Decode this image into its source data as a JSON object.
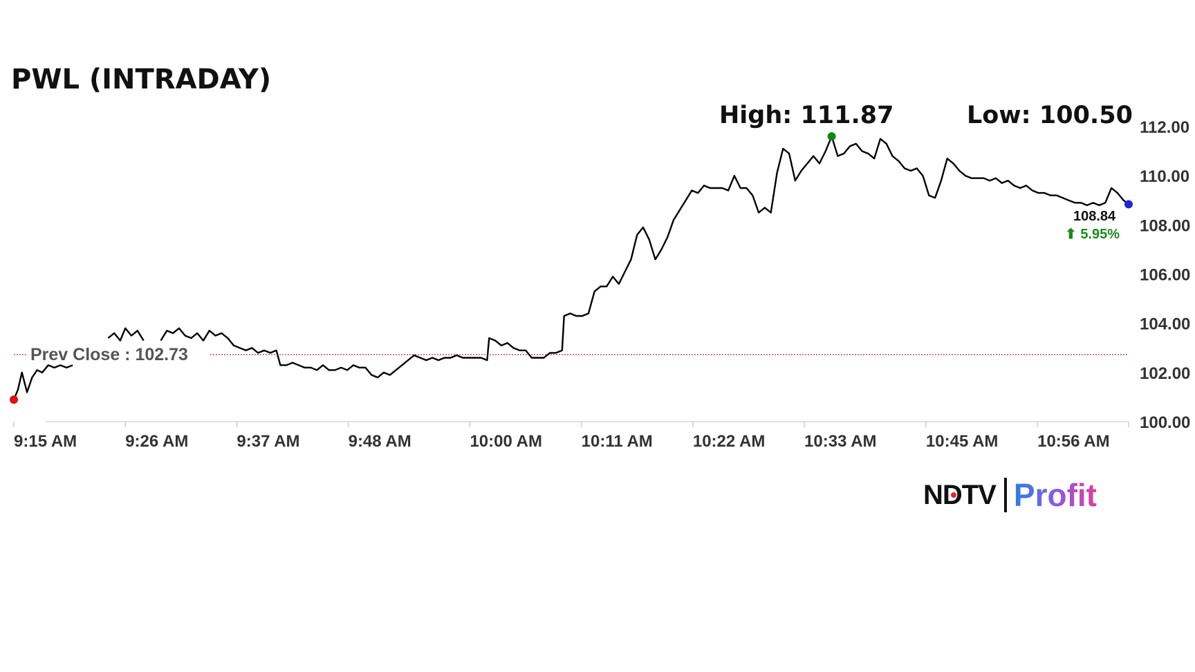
{
  "header": {
    "title": "PWL (INTRADAY)",
    "high_label": "High: 111.87",
    "low_label": "Low: 100.50"
  },
  "last": {
    "price": "108.84",
    "change": "⬆ 5.95%",
    "change_color": "#1a8a1a"
  },
  "brand": {
    "left": "NDTV",
    "right": "Profit"
  },
  "chart_data": {
    "type": "line",
    "title": "PWL (INTRADAY)",
    "xlabel": "",
    "ylabel": "",
    "ylim": [
      100,
      112
    ],
    "xlim_minutes": [
      0,
      110
    ],
    "y_ticks": [
      "112.00",
      "110.00",
      "108.00",
      "106.00",
      "104.00",
      "102.00",
      "100.00"
    ],
    "y_tick_values": [
      112,
      110,
      108,
      106,
      104,
      102,
      100
    ],
    "x_ticks": [
      "9:15 AM",
      "9:26 AM",
      "9:37 AM",
      "9:48 AM",
      "10:00 AM",
      "10:11 AM",
      "10:22 AM",
      "10:33 AM",
      "10:45 AM",
      "10:56 AM"
    ],
    "x_tick_minutes": [
      0,
      11,
      22,
      33,
      45,
      56,
      67,
      78,
      90,
      101
    ],
    "prev_close": 102.73,
    "prev_close_label": "Prev Close : 102.73",
    "high": 111.87,
    "low": 100.5,
    "last_price": 108.84,
    "line_color": "#000000",
    "prev_close_color": "#b03030",
    "start_marker_color": "#e01010",
    "high_marker_color": "#118811",
    "end_marker_color": "#1a2ad8",
    "series": [
      {
        "values": [
          [
            0.0,
            100.9
          ],
          [
            0.4,
            101.3
          ],
          [
            0.8,
            102.0
          ],
          [
            1.3,
            101.2
          ],
          [
            1.8,
            101.8
          ],
          [
            2.3,
            102.1
          ],
          [
            2.8,
            102.0
          ],
          [
            3.4,
            102.3
          ],
          [
            4.0,
            102.2
          ],
          [
            4.6,
            102.3
          ],
          [
            5.2,
            102.2
          ],
          [
            5.8,
            102.3
          ],
          [
            9.3,
            103.4
          ],
          [
            9.9,
            103.6
          ],
          [
            10.5,
            103.3
          ],
          [
            11.0,
            103.8
          ],
          [
            11.6,
            103.5
          ],
          [
            12.2,
            103.7
          ],
          [
            12.8,
            103.3
          ],
          [
            14.5,
            103.3
          ],
          [
            15.1,
            103.7
          ],
          [
            15.7,
            103.6
          ],
          [
            16.3,
            103.8
          ],
          [
            16.9,
            103.5
          ],
          [
            17.5,
            103.4
          ],
          [
            18.1,
            103.6
          ],
          [
            18.7,
            103.3
          ],
          [
            19.3,
            103.7
          ],
          [
            19.9,
            103.5
          ],
          [
            20.5,
            103.6
          ],
          [
            21.1,
            103.4
          ],
          [
            21.7,
            103.1
          ],
          [
            22.3,
            103.0
          ],
          [
            22.9,
            102.9
          ],
          [
            23.5,
            103.0
          ],
          [
            24.1,
            102.8
          ],
          [
            24.7,
            102.9
          ],
          [
            25.3,
            102.8
          ],
          [
            25.9,
            102.9
          ],
          [
            26.3,
            102.3
          ],
          [
            26.9,
            102.3
          ],
          [
            27.5,
            102.4
          ],
          [
            28.1,
            102.3
          ],
          [
            28.7,
            102.2
          ],
          [
            29.3,
            102.2
          ],
          [
            29.9,
            102.1
          ],
          [
            30.5,
            102.3
          ],
          [
            31.1,
            102.1
          ],
          [
            31.7,
            102.1
          ],
          [
            32.3,
            102.2
          ],
          [
            32.9,
            102.1
          ],
          [
            33.5,
            102.3
          ],
          [
            34.1,
            102.2
          ],
          [
            34.7,
            102.2
          ],
          [
            35.3,
            101.9
          ],
          [
            35.9,
            101.8
          ],
          [
            36.5,
            102.0
          ],
          [
            37.1,
            101.9
          ],
          [
            37.7,
            102.1
          ],
          [
            38.3,
            102.3
          ],
          [
            38.9,
            102.5
          ],
          [
            39.5,
            102.7
          ],
          [
            40.1,
            102.6
          ],
          [
            40.7,
            102.5
          ],
          [
            41.3,
            102.6
          ],
          [
            41.9,
            102.5
          ],
          [
            42.5,
            102.6
          ],
          [
            43.1,
            102.6
          ],
          [
            43.7,
            102.7
          ],
          [
            44.3,
            102.6
          ],
          [
            44.9,
            102.6
          ],
          [
            45.5,
            102.6
          ],
          [
            46.1,
            102.6
          ],
          [
            46.7,
            102.5
          ],
          [
            46.9,
            103.4
          ],
          [
            47.5,
            103.3
          ],
          [
            48.1,
            103.1
          ],
          [
            48.7,
            103.2
          ],
          [
            49.3,
            103.0
          ],
          [
            49.9,
            102.9
          ],
          [
            50.5,
            102.9
          ],
          [
            51.1,
            102.6
          ],
          [
            51.7,
            102.6
          ],
          [
            52.3,
            102.6
          ],
          [
            52.9,
            102.8
          ],
          [
            53.5,
            102.8
          ],
          [
            54.1,
            102.9
          ],
          [
            54.3,
            104.3
          ],
          [
            54.9,
            104.4
          ],
          [
            55.5,
            104.3
          ],
          [
            56.1,
            104.3
          ],
          [
            56.7,
            104.4
          ],
          [
            57.3,
            105.3
          ],
          [
            57.9,
            105.5
          ],
          [
            58.5,
            105.5
          ],
          [
            59.1,
            105.9
          ],
          [
            59.7,
            105.6
          ],
          [
            60.3,
            106.1
          ],
          [
            60.9,
            106.6
          ],
          [
            61.5,
            107.6
          ],
          [
            62.1,
            107.9
          ],
          [
            62.7,
            107.4
          ],
          [
            63.3,
            106.6
          ],
          [
            63.9,
            107.0
          ],
          [
            64.5,
            107.5
          ],
          [
            65.1,
            108.2
          ],
          [
            65.7,
            108.6
          ],
          [
            66.3,
            109.0
          ],
          [
            66.9,
            109.4
          ],
          [
            67.5,
            109.3
          ],
          [
            68.1,
            109.6
          ],
          [
            68.7,
            109.5
          ],
          [
            69.3,
            109.5
          ],
          [
            69.9,
            109.5
          ],
          [
            70.5,
            109.4
          ],
          [
            71.1,
            110.0
          ],
          [
            71.7,
            109.5
          ],
          [
            72.3,
            109.5
          ],
          [
            72.9,
            109.2
          ],
          [
            73.5,
            108.5
          ],
          [
            74.1,
            108.7
          ],
          [
            74.7,
            108.5
          ],
          [
            75.3,
            110.1
          ],
          [
            75.9,
            111.1
          ],
          [
            76.5,
            110.9
          ],
          [
            77.1,
            109.8
          ],
          [
            77.7,
            110.2
          ],
          [
            78.3,
            110.5
          ],
          [
            78.9,
            110.8
          ],
          [
            79.5,
            110.5
          ],
          [
            80.1,
            111.0
          ],
          [
            80.7,
            111.6
          ],
          [
            81.3,
            110.8
          ],
          [
            81.9,
            110.9
          ],
          [
            82.5,
            111.2
          ],
          [
            83.1,
            111.3
          ],
          [
            83.7,
            111.0
          ],
          [
            84.3,
            110.9
          ],
          [
            84.9,
            110.7
          ],
          [
            85.5,
            111.5
          ],
          [
            86.1,
            111.3
          ],
          [
            86.7,
            110.8
          ],
          [
            87.3,
            110.6
          ],
          [
            87.9,
            110.3
          ],
          [
            88.5,
            110.2
          ],
          [
            89.1,
            110.3
          ],
          [
            89.7,
            110.0
          ],
          [
            90.3,
            109.2
          ],
          [
            90.9,
            109.1
          ],
          [
            91.5,
            109.8
          ],
          [
            92.1,
            110.7
          ],
          [
            92.7,
            110.5
          ],
          [
            93.3,
            110.2
          ],
          [
            93.9,
            110.0
          ],
          [
            94.5,
            109.9
          ],
          [
            95.1,
            109.9
          ],
          [
            95.7,
            109.9
          ],
          [
            96.3,
            109.8
          ],
          [
            96.9,
            109.9
          ],
          [
            97.5,
            109.7
          ],
          [
            98.1,
            109.8
          ],
          [
            98.7,
            109.6
          ],
          [
            99.3,
            109.5
          ],
          [
            99.9,
            109.6
          ],
          [
            100.5,
            109.4
          ],
          [
            101.1,
            109.3
          ],
          [
            101.7,
            109.3
          ],
          [
            102.3,
            109.2
          ],
          [
            102.9,
            109.2
          ],
          [
            103.5,
            109.1
          ],
          [
            104.1,
            109.0
          ],
          [
            104.7,
            108.9
          ],
          [
            105.3,
            108.9
          ],
          [
            105.9,
            108.8
          ],
          [
            106.5,
            108.9
          ],
          [
            107.1,
            108.8
          ],
          [
            107.7,
            108.9
          ],
          [
            108.3,
            109.5
          ],
          [
            108.9,
            109.3
          ],
          [
            109.5,
            109.0
          ],
          [
            110.0,
            108.84
          ]
        ]
      }
    ]
  }
}
